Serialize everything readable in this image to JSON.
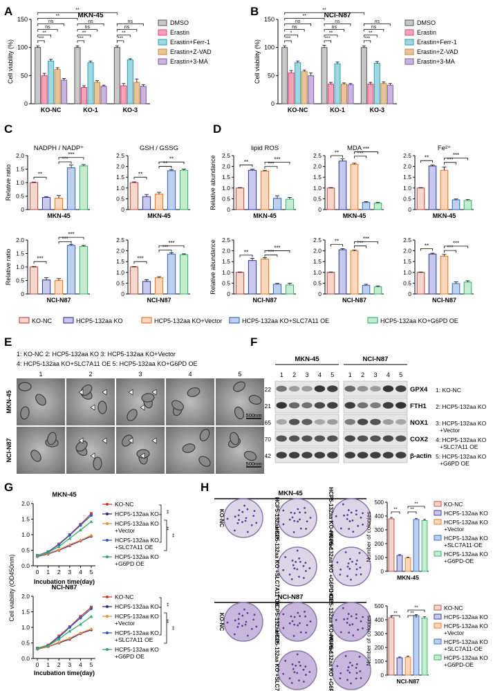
{
  "panel_labels": [
    "A",
    "B",
    "C",
    "D",
    "E",
    "F",
    "G",
    "H"
  ],
  "chart_data": [
    {
      "id": "A",
      "type": "bar",
      "title": "MKN-45",
      "ylabel": "Cell viability (%)",
      "ylim": [
        0,
        150
      ],
      "yticks": [
        0,
        50,
        100,
        150
      ],
      "categories": [
        "KO-NC",
        "KO-1",
        "KO-3"
      ],
      "legend": [
        "DMSO",
        "Erastin",
        "Erastin+Ferr-1",
        "Erastin+Z-VAD",
        "Erastin+3-MA"
      ],
      "colors": [
        "#c8c8c8",
        "#f4a3b8",
        "#9fd8e0",
        "#e8c49a",
        "#c9b5de"
      ],
      "edges": [
        "#555555",
        "#e0427a",
        "#2a9db0",
        "#c48a3c",
        "#7a5aa8"
      ],
      "values": [
        [
          100,
          50,
          76,
          61,
          42
        ],
        [
          100,
          29,
          73,
          38,
          31
        ],
        [
          100,
          32,
          78,
          38,
          31
        ]
      ],
      "errors": [
        [
          3,
          4,
          3,
          3,
          3
        ],
        [
          3,
          3,
          3,
          3,
          2
        ],
        [
          3,
          4,
          2,
          6,
          3
        ]
      ],
      "annotations": [
        "***",
        "**",
        "ns",
        "ns",
        "***",
        "**",
        "ns",
        "ns",
        "***",
        "**",
        "ns",
        "ns",
        "**",
        "**"
      ]
    },
    {
      "id": "B",
      "type": "bar",
      "title": "NCI-N87",
      "ylabel": "Cell viability (%)",
      "ylim": [
        0,
        150
      ],
      "yticks": [
        0,
        50,
        100,
        150
      ],
      "categories": [
        "KO-NC",
        "KO-1",
        "KO-3"
      ],
      "legend": [
        "DMSO",
        "Erastin",
        "Erastin+Ferr-1",
        "Erastin+Z-VAD",
        "Erastin+3-MA"
      ],
      "colors": [
        "#c8c8c8",
        "#f4a3b8",
        "#9fd8e0",
        "#e8c49a",
        "#c9b5de"
      ],
      "edges": [
        "#555555",
        "#e0427a",
        "#2a9db0",
        "#c48a3c",
        "#7a5aa8"
      ],
      "values": [
        [
          100,
          55,
          73,
          57,
          50
        ],
        [
          100,
          35,
          71,
          35,
          34
        ],
        [
          100,
          35,
          72,
          36,
          33
        ]
      ],
      "errors": [
        [
          3,
          4,
          3,
          3,
          5
        ],
        [
          4,
          3,
          3,
          2,
          2
        ],
        [
          3,
          3,
          3,
          3,
          3
        ]
      ],
      "annotations": [
        "***",
        "*",
        "ns",
        "ns",
        "***",
        "**",
        "ns",
        "ns",
        "***",
        "**",
        "ns",
        "ns",
        "**",
        "**"
      ]
    },
    {
      "id": "C1",
      "type": "bar",
      "title": "NADPH / NADP⁺",
      "ylabel": "Relative ratio",
      "xlabel": "MKN-45",
      "ylim": [
        0,
        2
      ],
      "yticks": [
        "0",
        "0.5",
        "1.0",
        "1.5",
        "2.0"
      ],
      "values": [
        1.0,
        0.45,
        0.42,
        1.55,
        1.62
      ],
      "errors": [
        0.02,
        0.03,
        0.1,
        0.1,
        0.05
      ],
      "annotations": [
        "**",
        "***",
        "***"
      ]
    },
    {
      "id": "C2",
      "type": "bar",
      "title": "GSH / GSSG",
      "ylabel": "",
      "xlabel": "MKN-45",
      "ylim": [
        0,
        2.5
      ],
      "yticks": [
        "0",
        "0.5",
        "1.0",
        "1.5",
        "2.0",
        "2.5"
      ],
      "values": [
        1.25,
        0.6,
        0.72,
        1.8,
        1.82
      ],
      "errors": [
        0.03,
        0.1,
        0.08,
        0.05,
        0.06
      ],
      "annotations": [
        "**",
        "**",
        "**"
      ]
    },
    {
      "id": "C3",
      "type": "bar",
      "title": "",
      "ylabel": "Relative ratio",
      "xlabel": "NCI-N87",
      "ylim": [
        0,
        2
      ],
      "yticks": [
        "0",
        "0.5",
        "1.0",
        "1.5",
        "2.0"
      ],
      "values": [
        1.0,
        0.52,
        0.5,
        1.8,
        1.76
      ],
      "errors": [
        0.02,
        0.08,
        0.07,
        0.04,
        0.04
      ],
      "annotations": [
        "***",
        "***",
        "***"
      ]
    },
    {
      "id": "C4",
      "type": "bar",
      "title": "",
      "ylabel": "",
      "xlabel": "NCI-N87",
      "ylim": [
        0,
        2.5
      ],
      "yticks": [
        "0",
        "0.5",
        "1.0",
        "1.5",
        "2.0",
        "2.5"
      ],
      "values": [
        1.25,
        0.58,
        0.75,
        1.85,
        1.82
      ],
      "errors": [
        0.02,
        0.08,
        0.05,
        0.06,
        0.04
      ],
      "annotations": [
        "***",
        "***",
        "***"
      ]
    },
    {
      "id": "D1",
      "type": "bar",
      "title": "lipid ROS",
      "ylabel": "Relative abundance",
      "xlabel": "MKN-45",
      "ylim": [
        0,
        2.5
      ],
      "yticks": [
        "0",
        "0.5",
        "1.0",
        "1.5",
        "2.0",
        "2.5"
      ],
      "values": [
        1.0,
        1.82,
        1.78,
        0.52,
        0.48
      ],
      "errors": [
        0.02,
        0.05,
        0.04,
        0.12,
        0.08
      ],
      "annotations": [
        "**",
        "***",
        "***"
      ]
    },
    {
      "id": "D2",
      "type": "bar",
      "title": "MDA",
      "ylabel": "",
      "xlabel": "MKN-45",
      "ylim": [
        0,
        2.5
      ],
      "yticks": [
        "0",
        "0.5",
        "1.0",
        "1.5",
        "2.0",
        "2.5"
      ],
      "values": [
        1.0,
        2.25,
        2.1,
        0.33,
        0.3
      ],
      "errors": [
        0.02,
        0.1,
        0.05,
        0.04,
        0.03
      ],
      "annotations": [
        "**",
        "***",
        "***"
      ]
    },
    {
      "id": "D3",
      "type": "bar",
      "title": "Fe²⁺",
      "ylabel": "",
      "xlabel": "MKN-45",
      "ylim": [
        0,
        2.5
      ],
      "yticks": [
        "0",
        "0.5",
        "1.0",
        "1.5",
        "2.0",
        "2.5"
      ],
      "values": [
        1.0,
        2.02,
        1.82,
        0.45,
        0.42
      ],
      "errors": [
        0.02,
        0.04,
        0.15,
        0.04,
        0.05
      ],
      "annotations": [
        "**",
        "***",
        "***"
      ]
    },
    {
      "id": "D4",
      "type": "bar",
      "title": "",
      "ylabel": "Relative abundance",
      "xlabel": "NCI-N87",
      "ylim": [
        0,
        2.5
      ],
      "yticks": [
        "0",
        "0.5",
        "1.0",
        "1.5",
        "2.0",
        "2.5"
      ],
      "values": [
        1.0,
        1.55,
        1.62,
        0.45,
        0.42
      ],
      "errors": [
        0.02,
        0.1,
        0.06,
        0.04,
        0.08
      ],
      "annotations": [
        "**",
        "***",
        "***"
      ]
    },
    {
      "id": "D5",
      "type": "bar",
      "title": "",
      "ylabel": "",
      "xlabel": "NCI-N87",
      "ylim": [
        0,
        2.5
      ],
      "yticks": [
        "0",
        "0.5",
        "1.0",
        "1.5",
        "2.0",
        "2.5"
      ],
      "values": [
        1.0,
        2.05,
        2.0,
        0.4,
        0.33
      ],
      "errors": [
        0.02,
        0.05,
        0.04,
        0.05,
        0.04
      ],
      "annotations": [
        "**",
        "***",
        "***"
      ]
    },
    {
      "id": "D6",
      "type": "bar",
      "title": "",
      "ylabel": "",
      "xlabel": "NCI-N87",
      "ylim": [
        0,
        2.5
      ],
      "yticks": [
        "0",
        "0.5",
        "1.0",
        "1.5",
        "2.0",
        "2.5"
      ],
      "values": [
        1.0,
        1.85,
        1.75,
        0.48,
        0.55
      ],
      "errors": [
        0.02,
        0.04,
        0.08,
        0.08,
        0.06
      ],
      "annotations": [
        "**",
        "***",
        "***"
      ]
    },
    {
      "id": "G1",
      "type": "line",
      "title": "MKN-45",
      "ylabel": "Cell viability (OD450nm)",
      "xlabel": "",
      "ylim": [
        0,
        2
      ],
      "yticks": [
        "0.0",
        "0.5",
        "1.0",
        "1.5",
        "2.0"
      ],
      "x": [
        0,
        1,
        2,
        3,
        4,
        5
      ],
      "series": [
        {
          "name": "KO-NC",
          "values": [
            0.33,
            0.45,
            0.7,
            1.0,
            1.33,
            1.68
          ]
        },
        {
          "name": "HCP5-132aa KO",
          "values": [
            0.3,
            0.38,
            0.5,
            0.65,
            0.8,
            0.95
          ]
        },
        {
          "name": "HCP5-132aa KO +Vector",
          "values": [
            0.32,
            0.4,
            0.52,
            0.68,
            0.82,
            0.98
          ]
        },
        {
          "name": "HCP5-132aa KO +SLC7A11 OE",
          "values": [
            0.33,
            0.45,
            0.68,
            0.98,
            1.3,
            1.62
          ]
        },
        {
          "name": "HCP5-132aa KO +G6PD OE",
          "values": [
            0.33,
            0.43,
            0.62,
            0.88,
            1.15,
            1.42
          ]
        }
      ],
      "annotations": [
        "**",
        "**",
        "**"
      ]
    },
    {
      "id": "G2",
      "type": "line",
      "title": "NCI-N87",
      "ylabel": "",
      "xlabel": "Incubation time(day)",
      "ylim": [
        0,
        2
      ],
      "yticks": [
        "0.0",
        "0.5",
        "1.0",
        "1.5",
        "2.0"
      ],
      "x": [
        0,
        1,
        2,
        3,
        4,
        5
      ],
      "series": [
        {
          "name": "KO-NC",
          "values": [
            0.33,
            0.43,
            0.72,
            1.02,
            1.35,
            1.65
          ]
        },
        {
          "name": "HCP5-132aa KO",
          "values": [
            0.3,
            0.38,
            0.5,
            0.62,
            0.8,
            0.92
          ]
        },
        {
          "name": "HCP5-132aa KO +Vector",
          "values": [
            0.31,
            0.39,
            0.52,
            0.65,
            0.82,
            0.95
          ]
        },
        {
          "name": "HCP5-132aa KO +SLC7A11 OE",
          "values": [
            0.33,
            0.42,
            0.68,
            1.0,
            1.3,
            1.6
          ]
        },
        {
          "name": "HCP5-132aa KO +G6PD OE",
          "values": [
            0.33,
            0.41,
            0.62,
            0.88,
            1.1,
            1.35
          ]
        }
      ],
      "annotations": [
        "**",
        "**",
        "**"
      ]
    },
    {
      "id": "H1",
      "type": "bar",
      "title": "",
      "ylabel": "Number of colonies",
      "xlabel": "MKN-45",
      "ylim": [
        0,
        500
      ],
      "yticks": [
        "0",
        "100",
        "200",
        "300",
        "400",
        "500"
      ],
      "values": [
        380,
        115,
        98,
        375,
        368
      ],
      "errors": [
        10,
        6,
        5,
        8,
        8
      ],
      "annotations": [
        "**",
        "**",
        "**"
      ]
    },
    {
      "id": "H2",
      "type": "bar",
      "title": "",
      "ylabel": "Number of colonies",
      "xlabel": "NCI-N87",
      "ylim": [
        0,
        500
      ],
      "yticks": [
        "0",
        "100",
        "200",
        "300",
        "400",
        "500"
      ],
      "values": [
        415,
        125,
        130,
        430,
        412
      ],
      "errors": [
        12,
        6,
        8,
        8,
        10
      ],
      "annotations": [
        "**",
        "**",
        "**"
      ]
    }
  ],
  "chart_A": {
    "x_group_labels": [
      "KO-NC",
      "KO-1",
      "KO-3"
    ]
  },
  "chart_B": {
    "x_group_labels": [
      "KO-NC",
      "KO-1",
      "KO-3"
    ]
  },
  "group_legend": [
    "KO-NC",
    "HCP5-132aa KO",
    "HCP5-132aa KO+Vector",
    "HCP5-132aa KO+SLC7A11 OE",
    "HCP5-132aa KO+G6PD OE"
  ],
  "group_colors": {
    "fills": [
      "#f5d7cc",
      "#c7c9ec",
      "#fcd6bd",
      "#bdd0ef",
      "#c5ebd1"
    ],
    "edges": [
      "#c0504d",
      "#3f3f9f",
      "#f07a2a",
      "#3b6fc0",
      "#3cb371"
    ]
  },
  "panel_E": {
    "legend_lines": [
      "1: KO-NC    2: HCP5-132aa KO    3: HCP5-132aa KO+Vector",
      "4: HCP5-132aa KO+SLC7A11 OE   5: HCP5-132aa KO+G6PD OE"
    ],
    "columns": [
      "1",
      "2",
      "3",
      "4",
      "5"
    ],
    "rows": [
      "MKN-45",
      "NCI-N87"
    ],
    "scalebar": "500nm"
  },
  "panel_F": {
    "groups": [
      "MKN-45",
      "NCI-N87"
    ],
    "lanes": [
      "1",
      "2",
      "3",
      "4",
      "5"
    ],
    "proteins": [
      {
        "kda": "22",
        "name": "GPX4"
      },
      {
        "kda": "21",
        "name": "FTH1"
      },
      {
        "kda": "65",
        "name": "NOX1"
      },
      {
        "kda": "70",
        "name": "COX2"
      },
      {
        "kda": "42",
        "name": "β-actin"
      }
    ],
    "legend": [
      "1: KO-NC",
      "2: HCP5-132aa KO",
      "3: HCP5-132aa KO +Vector",
      "4: HCP5-132aa KO +SLC7A11 OE",
      "5: HCP5-132aa KO +G6PD OE"
    ],
    "intensity": [
      [
        [
          0.55,
          0.35,
          0.35,
          0.85,
          0.8
        ],
        [
          0.6,
          0.4,
          0.35,
          0.85,
          0.8
        ]
      ],
      [
        [
          0.85,
          0.6,
          0.55,
          0.75,
          0.8
        ],
        [
          0.8,
          0.55,
          0.5,
          0.8,
          0.85
        ]
      ],
      [
        [
          0.3,
          0.7,
          0.65,
          0.3,
          0.35
        ],
        [
          0.5,
          0.75,
          0.7,
          0.35,
          0.3
        ]
      ],
      [
        [
          0.7,
          0.7,
          0.7,
          0.7,
          0.7
        ],
        [
          0.75,
          0.7,
          0.7,
          0.75,
          0.7
        ]
      ],
      [
        [
          0.8,
          0.8,
          0.8,
          0.8,
          0.8
        ],
        [
          0.8,
          0.8,
          0.8,
          0.8,
          0.8
        ]
      ]
    ]
  },
  "panel_G": {
    "legend": [
      "KO-NC",
      "HCP5-132aa KO",
      "HCP5-132aa KO",
      "+Vector",
      "HCP5-132aa KO",
      "+SLC7A11 OE",
      "HCP5-132aa KO",
      "+G6PD OE"
    ]
  },
  "panel_H": {
    "titles": [
      "MKN-45",
      "NCI-N87"
    ],
    "well_labels": [
      "KO-NC",
      "HCP5-132aa KO",
      "HCP5-132aa KO+Vector",
      "HCP5-132aa KO +SLC7A11 OE",
      "HCP5-132aa KO +G6PD OE"
    ],
    "legend": [
      "KO-NC",
      "HCP5-132aa KO",
      "HCP5-132aa KO",
      "+Vector",
      "HCP5-132aa KO",
      "+SLC7A11-OE",
      "HCP5-132aa KO",
      "+G6PD-OE"
    ]
  }
}
